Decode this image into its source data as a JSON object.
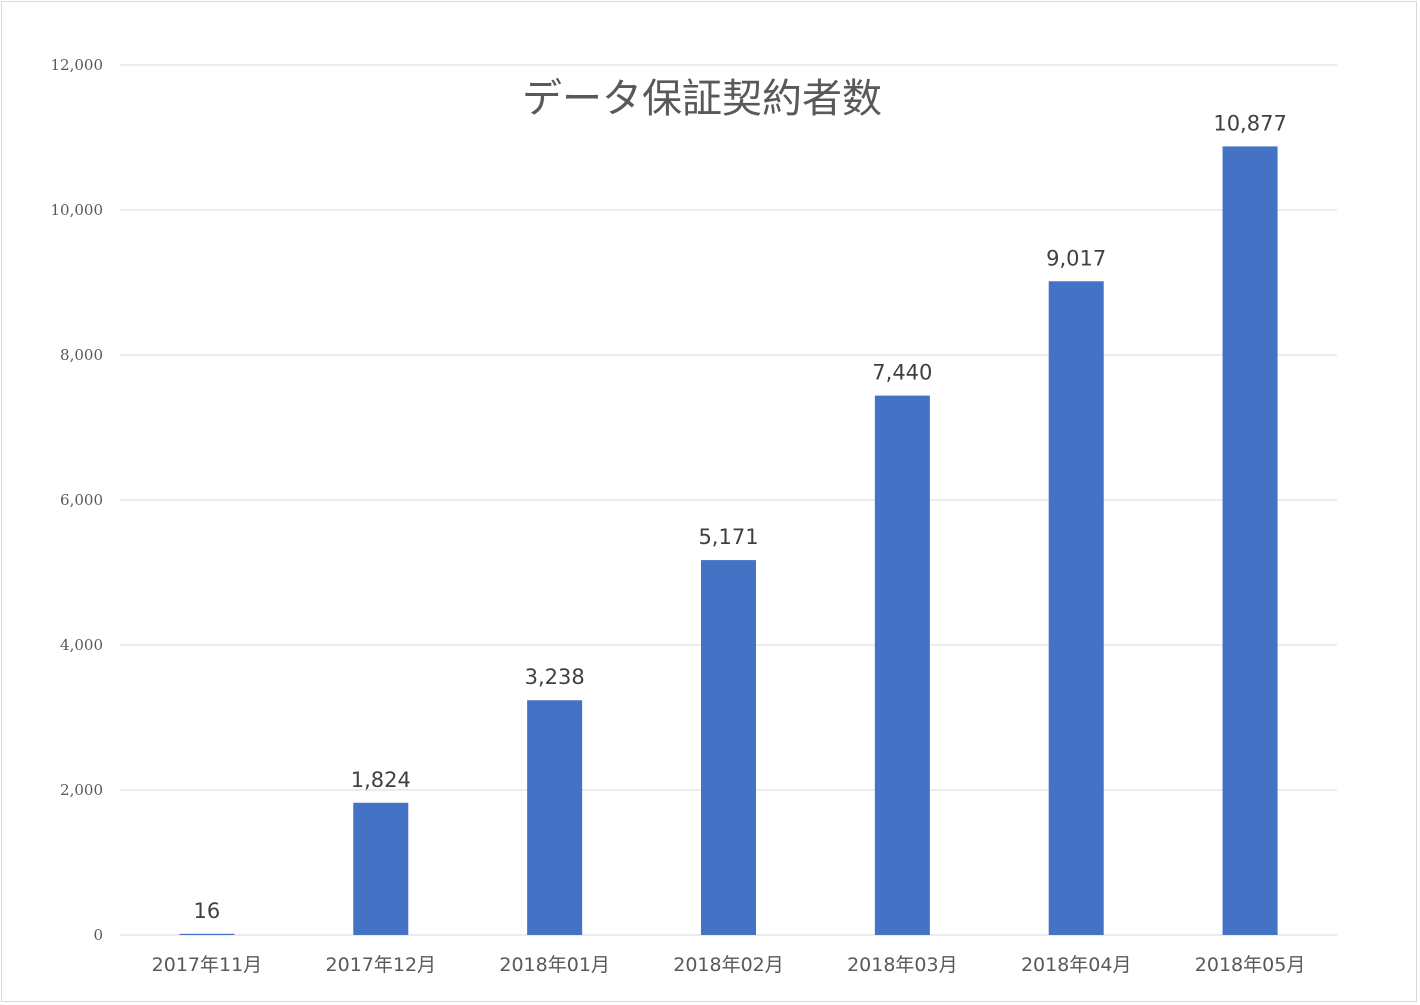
{
  "chart_data": {
    "type": "bar",
    "title": "データ保証契約者数",
    "categories": [
      "2017年11月",
      "2017年12月",
      "2018年01月",
      "2018年02月",
      "2018年03月",
      "2018年04月",
      "2018年05月"
    ],
    "values": [
      16,
      1824,
      3238,
      5171,
      7440,
      9017,
      10877
    ],
    "data_labels": [
      "16",
      "1,824",
      "3,238",
      "5,171",
      "7,440",
      "9,017",
      "10,877"
    ],
    "yticks": [
      "0",
      "2,000",
      "4,000",
      "6,000",
      "8,000",
      "10,000",
      "12,000"
    ],
    "ylim": [
      0,
      12000
    ],
    "grid": true,
    "legend": "none",
    "bar_color": "#4472C4"
  }
}
